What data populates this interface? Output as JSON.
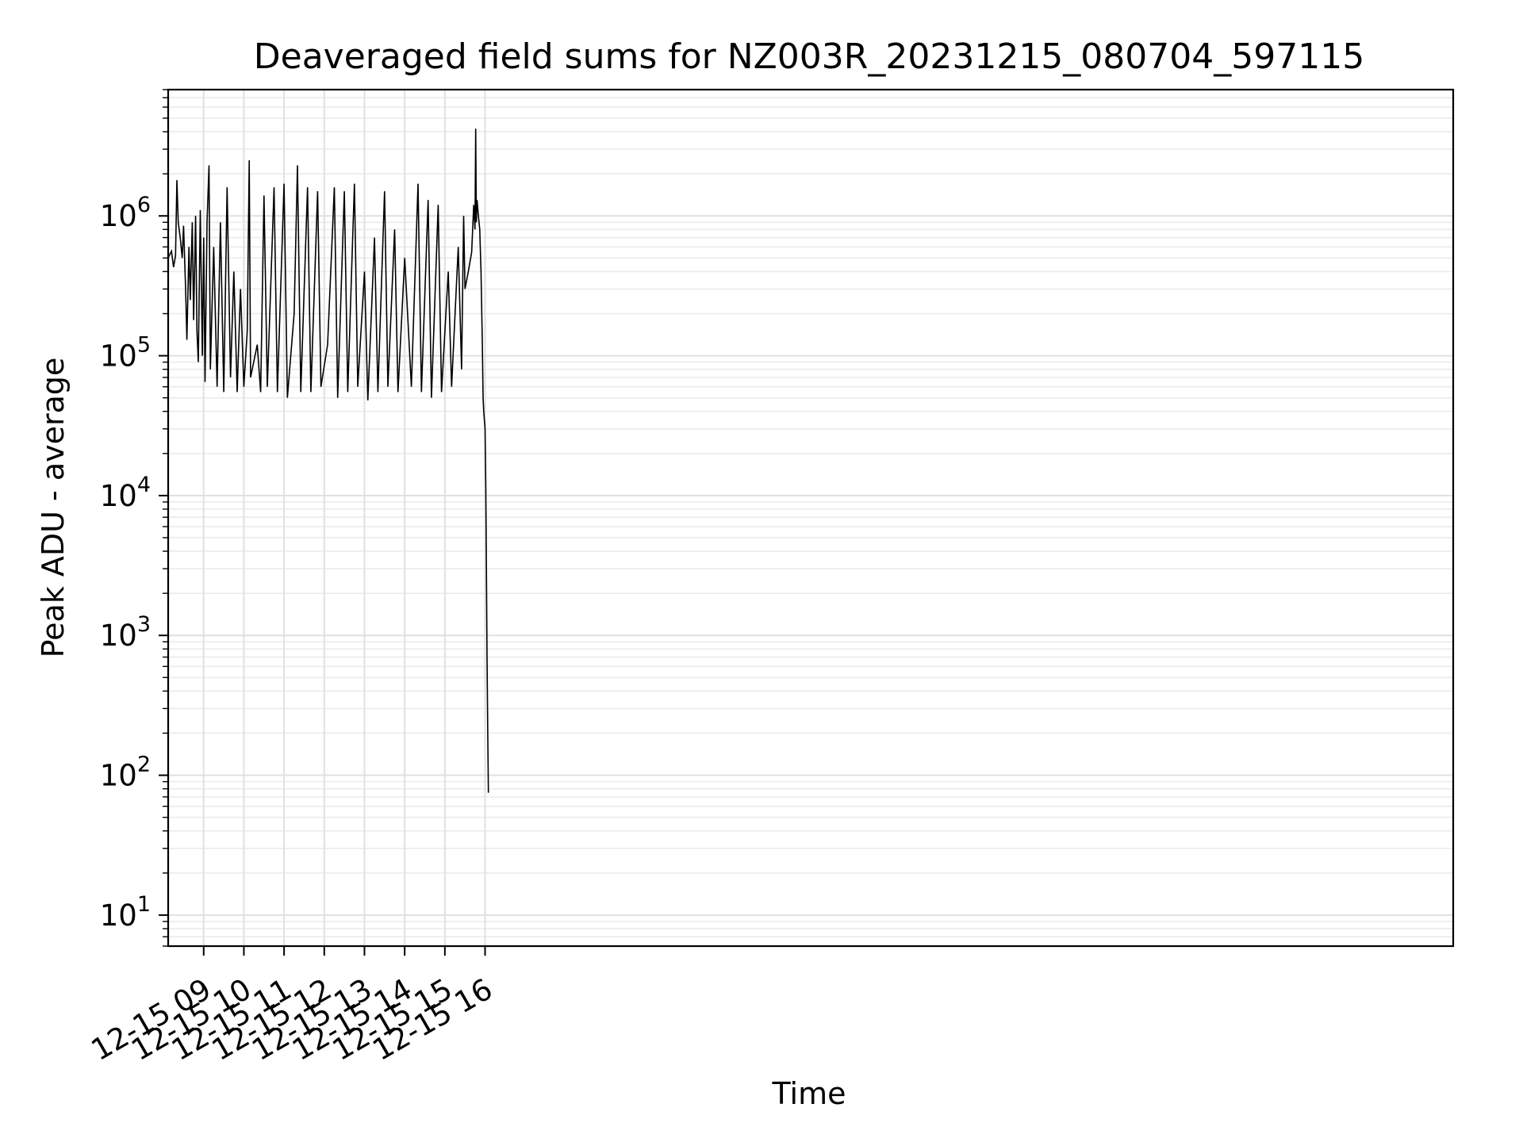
{
  "chart_data": {
    "type": "line",
    "title": "Deaveraged field sums for NZ003R_20231215_080704_597115",
    "xlabel": "Time",
    "ylabel": "Peak ADU - average",
    "yscale": "log",
    "ylim": [
      6,
      8000000
    ],
    "xlim": [
      "2023-12-15 08:07",
      "2023-12-16 16:05"
    ],
    "grid": true,
    "x_ticks": [
      {
        "value": "2023-12-15 09:00",
        "label": "12-15 09"
      },
      {
        "value": "2023-12-15 10:00",
        "label": "12-15 10"
      },
      {
        "value": "2023-12-15 11:00",
        "label": "12-15 11"
      },
      {
        "value": "2023-12-15 12:00",
        "label": "12-15 12"
      },
      {
        "value": "2023-12-15 13:00",
        "label": "12-15 13"
      },
      {
        "value": "2023-12-15 14:00",
        "label": "12-15 14"
      },
      {
        "value": "2023-12-15 15:00",
        "label": "12-15 15"
      },
      {
        "value": "2023-12-15 16:00",
        "label": "12-15 16"
      }
    ],
    "y_ticks": [
      {
        "value": 10,
        "base": "10",
        "exp": "1"
      },
      {
        "value": 100,
        "base": "10",
        "exp": "2"
      },
      {
        "value": 1000,
        "base": "10",
        "exp": "3"
      },
      {
        "value": 10000,
        "base": "10",
        "exp": "4"
      },
      {
        "value": 100000,
        "base": "10",
        "exp": "5"
      },
      {
        "value": 1000000,
        "base": "10",
        "exp": "6"
      }
    ],
    "series": [
      {
        "color": "#000000",
        "points": [
          [
            "2023-12-15 08:07",
            500000
          ],
          [
            "2023-12-15 08:12",
            560000
          ],
          [
            "2023-12-15 08:15",
            430000
          ],
          [
            "2023-12-15 08:18",
            520000
          ],
          [
            "2023-12-15 08:20",
            1800000
          ],
          [
            "2023-12-15 08:22",
            900000
          ],
          [
            "2023-12-15 08:25",
            700000
          ],
          [
            "2023-12-15 08:28",
            500000
          ],
          [
            "2023-12-15 08:30",
            850000
          ],
          [
            "2023-12-15 08:33",
            300000
          ],
          [
            "2023-12-15 08:35",
            130000
          ],
          [
            "2023-12-15 08:38",
            600000
          ],
          [
            "2023-12-15 08:40",
            250000
          ],
          [
            "2023-12-15 08:43",
            900000
          ],
          [
            "2023-12-15 08:45",
            180000
          ],
          [
            "2023-12-15 08:48",
            1000000
          ],
          [
            "2023-12-15 08:50",
            150000
          ],
          [
            "2023-12-15 08:52",
            90000
          ],
          [
            "2023-12-15 08:55",
            1100000
          ],
          [
            "2023-12-15 08:58",
            100000
          ],
          [
            "2023-12-15 09:00",
            700000
          ],
          [
            "2023-12-15 09:02",
            65000
          ],
          [
            "2023-12-15 09:05",
            900000
          ],
          [
            "2023-12-15 09:08",
            2300000
          ],
          [
            "2023-12-15 09:10",
            80000
          ],
          [
            "2023-12-15 09:15",
            600000
          ],
          [
            "2023-12-15 09:20",
            60000
          ],
          [
            "2023-12-15 09:25",
            900000
          ],
          [
            "2023-12-15 09:30",
            55000
          ],
          [
            "2023-12-15 09:35",
            1600000
          ],
          [
            "2023-12-15 09:40",
            70000
          ],
          [
            "2023-12-15 09:45",
            400000
          ],
          [
            "2023-12-15 09:50",
            55000
          ],
          [
            "2023-12-15 09:55",
            300000
          ],
          [
            "2023-12-15 10:00",
            60000
          ],
          [
            "2023-12-15 10:05",
            150000
          ],
          [
            "2023-12-15 10:08",
            2500000
          ],
          [
            "2023-12-15 10:10",
            70000
          ],
          [
            "2023-12-15 10:20",
            120000
          ],
          [
            "2023-12-15 10:25",
            55000
          ],
          [
            "2023-12-15 10:30",
            1400000
          ],
          [
            "2023-12-15 10:35",
            60000
          ],
          [
            "2023-12-15 10:45",
            1600000
          ],
          [
            "2023-12-15 10:50",
            55000
          ],
          [
            "2023-12-15 11:00",
            1700000
          ],
          [
            "2023-12-15 11:05",
            50000
          ],
          [
            "2023-12-15 11:15",
            200000
          ],
          [
            "2023-12-15 11:20",
            2300000
          ],
          [
            "2023-12-15 11:25",
            55000
          ],
          [
            "2023-12-15 11:35",
            1600000
          ],
          [
            "2023-12-15 11:40",
            55000
          ],
          [
            "2023-12-15 11:50",
            1500000
          ],
          [
            "2023-12-15 11:55",
            60000
          ],
          [
            "2023-12-15 12:05",
            120000
          ],
          [
            "2023-12-15 12:15",
            1600000
          ],
          [
            "2023-12-15 12:20",
            50000
          ],
          [
            "2023-12-15 12:30",
            1500000
          ],
          [
            "2023-12-15 12:35",
            55000
          ],
          [
            "2023-12-15 12:45",
            1700000
          ],
          [
            "2023-12-15 12:50",
            60000
          ],
          [
            "2023-12-15 13:00",
            400000
          ],
          [
            "2023-12-15 13:05",
            48000
          ],
          [
            "2023-12-15 13:15",
            700000
          ],
          [
            "2023-12-15 13:20",
            55000
          ],
          [
            "2023-12-15 13:30",
            1500000
          ],
          [
            "2023-12-15 13:35",
            60000
          ],
          [
            "2023-12-15 13:45",
            800000
          ],
          [
            "2023-12-15 13:50",
            55000
          ],
          [
            "2023-12-15 14:00",
            500000
          ],
          [
            "2023-12-15 14:10",
            60000
          ],
          [
            "2023-12-15 14:20",
            1700000
          ],
          [
            "2023-12-15 14:25",
            55000
          ],
          [
            "2023-12-15 14:35",
            1300000
          ],
          [
            "2023-12-15 14:40",
            50000
          ],
          [
            "2023-12-15 14:50",
            1200000
          ],
          [
            "2023-12-15 14:55",
            55000
          ],
          [
            "2023-12-15 15:05",
            400000
          ],
          [
            "2023-12-15 15:10",
            60000
          ],
          [
            "2023-12-15 15:20",
            600000
          ],
          [
            "2023-12-15 15:25",
            80000
          ],
          [
            "2023-12-15 15:28",
            1000000
          ],
          [
            "2023-12-15 15:30",
            300000
          ],
          [
            "2023-12-15 15:35",
            400000
          ],
          [
            "2023-12-15 15:40",
            550000
          ],
          [
            "2023-12-15 15:43",
            1200000
          ],
          [
            "2023-12-15 15:45",
            800000
          ],
          [
            "2023-12-15 15:46",
            4200000
          ],
          [
            "2023-12-15 15:47",
            900000
          ],
          [
            "2023-12-15 15:48",
            1300000
          ],
          [
            "2023-12-15 15:50",
            1000000
          ],
          [
            "2023-12-15 15:52",
            800000
          ],
          [
            "2023-12-15 15:54",
            400000
          ],
          [
            "2023-12-15 15:56",
            120000
          ],
          [
            "2023-12-15 15:57",
            50000
          ],
          [
            "2023-12-15 15:58",
            40000
          ],
          [
            "2023-12-15 16:00",
            30000
          ],
          [
            "2023-12-15 16:01",
            12000
          ],
          [
            "2023-12-15 16:02",
            3000
          ],
          [
            "2023-12-15 16:03",
            700
          ],
          [
            "2023-12-15 16:04",
            200
          ],
          [
            "2023-12-15 16:05",
            75
          ]
        ]
      }
    ]
  }
}
